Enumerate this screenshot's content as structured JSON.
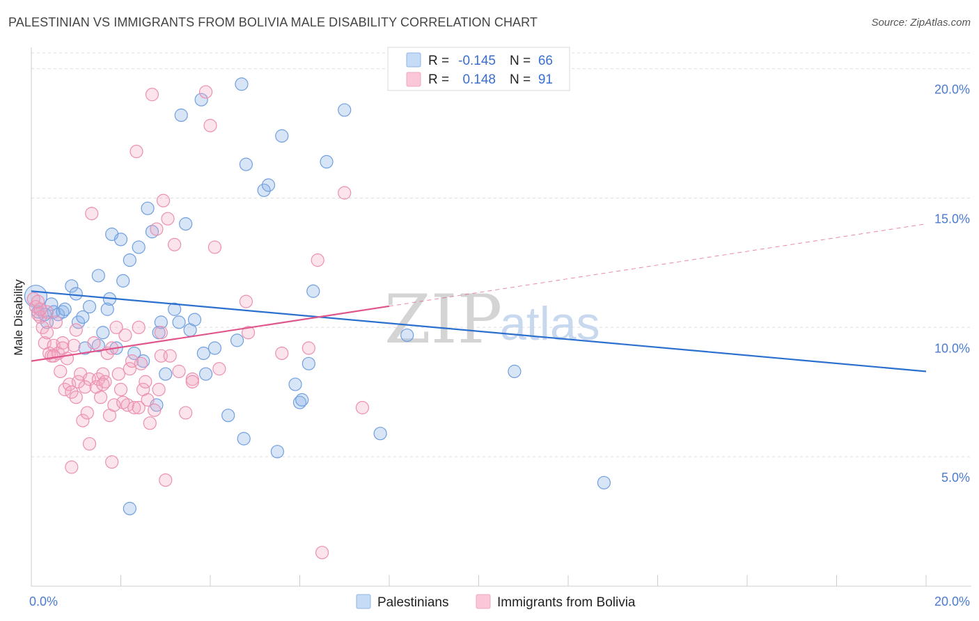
{
  "title": "PALESTINIAN VS IMMIGRANTS FROM BOLIVIA MALE DISABILITY CORRELATION CHART",
  "source": "Source: ZipAtlas.com",
  "watermark": {
    "zip": "ZIP",
    "atlas": "atlas"
  },
  "colors": {
    "blue": "#8fb5e8",
    "blue_line": "#2b6fcf",
    "pink": "#f2a7c0",
    "pink_line": "#e0558a",
    "grid": "#dddddd",
    "tick": "#4a7bd0"
  },
  "legend": {
    "rows": [
      {
        "r_label": "R =",
        "r_value": "-0.145",
        "n_label": "N =",
        "n_value": "66"
      },
      {
        "r_label": "R =",
        "r_value": "0.148",
        "n_label": "N =",
        "n_value": "91"
      }
    ]
  },
  "bottom_legend": [
    "Palestinians",
    "Immigrants from Bolivia"
  ],
  "chart_data": {
    "type": "scatter",
    "title": "PALESTINIAN VS IMMIGRANTS FROM BOLIVIA MALE DISABILITY CORRELATION CHART",
    "xlabel": "",
    "ylabel": "Male Disability",
    "x_ticks": [
      "0.0%",
      "20.0%"
    ],
    "y_ticks": [
      "5.0%",
      "10.0%",
      "15.0%",
      "20.0%"
    ],
    "xlim": [
      0,
      20
    ],
    "ylim": [
      0,
      20.5
    ],
    "series": [
      {
        "name": "Palestinians",
        "r": -0.145,
        "n": 66,
        "trend": {
          "x0": 0,
          "y0": 11.4,
          "x1": 20,
          "y1": 8.3,
          "dash_from": null
        },
        "points": [
          [
            0.1,
            11.2
          ],
          [
            0.15,
            10.6
          ],
          [
            0.2,
            10.7
          ],
          [
            0.3,
            10.5
          ],
          [
            0.35,
            10.2
          ],
          [
            0.45,
            10.9
          ],
          [
            0.5,
            10.6
          ],
          [
            0.6,
            10.5
          ],
          [
            0.7,
            10.6
          ],
          [
            0.75,
            10.7
          ],
          [
            0.9,
            11.6
          ],
          [
            1.0,
            11.3
          ],
          [
            1.05,
            10.2
          ],
          [
            1.15,
            10.4
          ],
          [
            1.3,
            10.8
          ],
          [
            1.2,
            9.2
          ],
          [
            1.5,
            9.3
          ],
          [
            1.5,
            12.0
          ],
          [
            1.6,
            9.8
          ],
          [
            1.7,
            10.7
          ],
          [
            1.75,
            11.1
          ],
          [
            1.8,
            13.6
          ],
          [
            1.9,
            9.2
          ],
          [
            2.0,
            13.4
          ],
          [
            2.05,
            11.8
          ],
          [
            2.2,
            12.6
          ],
          [
            2.3,
            9.0
          ],
          [
            2.4,
            13.1
          ],
          [
            2.5,
            8.7
          ],
          [
            2.6,
            14.6
          ],
          [
            2.7,
            13.7
          ],
          [
            2.8,
            7.0
          ],
          [
            2.85,
            9.8
          ],
          [
            2.9,
            10.2
          ],
          [
            3.0,
            8.2
          ],
          [
            3.2,
            10.7
          ],
          [
            3.3,
            10.2
          ],
          [
            3.35,
            18.2
          ],
          [
            3.45,
            14.0
          ],
          [
            3.55,
            9.9
          ],
          [
            3.65,
            10.3
          ],
          [
            3.8,
            18.8
          ],
          [
            3.85,
            9.0
          ],
          [
            3.9,
            8.2
          ],
          [
            4.1,
            9.2
          ],
          [
            4.4,
            6.6
          ],
          [
            4.6,
            9.5
          ],
          [
            4.75,
            5.7
          ],
          [
            4.7,
            19.4
          ],
          [
            4.8,
            16.3
          ],
          [
            5.2,
            15.3
          ],
          [
            5.3,
            15.5
          ],
          [
            5.5,
            5.2
          ],
          [
            5.6,
            17.4
          ],
          [
            5.9,
            7.8
          ],
          [
            6.0,
            7.1
          ],
          [
            6.05,
            7.2
          ],
          [
            6.2,
            8.6
          ],
          [
            6.3,
            11.4
          ],
          [
            6.6,
            16.4
          ],
          [
            7.0,
            18.4
          ],
          [
            7.8,
            5.9
          ],
          [
            8.4,
            9.7
          ],
          [
            10.8,
            8.3
          ],
          [
            12.8,
            4.0
          ],
          [
            2.2,
            3.0
          ]
        ]
      },
      {
        "name": "Immigrants from Bolivia",
        "r": 0.148,
        "n": 91,
        "trend": {
          "x0": 0,
          "y0": 8.7,
          "x1": 20,
          "y1": 14.0,
          "dash_from": 8.0
        },
        "points": [
          [
            0.05,
            11.1
          ],
          [
            0.1,
            10.8
          ],
          [
            0.15,
            10.5
          ],
          [
            0.2,
            10.4
          ],
          [
            0.25,
            10.0
          ],
          [
            0.3,
            9.4
          ],
          [
            0.35,
            9.8
          ],
          [
            0.4,
            9.0
          ],
          [
            0.45,
            8.9
          ],
          [
            0.5,
            9.3
          ],
          [
            0.55,
            10.2
          ],
          [
            0.6,
            9.0
          ],
          [
            0.65,
            8.3
          ],
          [
            0.7,
            9.4
          ],
          [
            0.75,
            7.6
          ],
          [
            0.8,
            8.8
          ],
          [
            0.85,
            7.8
          ],
          [
            0.9,
            7.5
          ],
          [
            0.95,
            9.3
          ],
          [
            1.0,
            9.9
          ],
          [
            1.05,
            7.9
          ],
          [
            1.1,
            8.2
          ],
          [
            1.15,
            6.4
          ],
          [
            1.2,
            7.7
          ],
          [
            1.25,
            6.7
          ],
          [
            1.3,
            8.0
          ],
          [
            1.35,
            14.4
          ],
          [
            1.4,
            9.4
          ],
          [
            1.45,
            7.7
          ],
          [
            1.5,
            8.0
          ],
          [
            1.55,
            7.3
          ],
          [
            1.6,
            8.2
          ],
          [
            1.65,
            7.9
          ],
          [
            1.7,
            9.0
          ],
          [
            1.75,
            6.6
          ],
          [
            1.8,
            4.8
          ],
          [
            1.85,
            7.0
          ],
          [
            1.9,
            10.0
          ],
          [
            1.95,
            8.2
          ],
          [
            2.0,
            7.6
          ],
          [
            2.05,
            7.1
          ],
          [
            2.1,
            9.7
          ],
          [
            2.15,
            7.0
          ],
          [
            2.2,
            8.4
          ],
          [
            2.25,
            8.7
          ],
          [
            2.3,
            6.9
          ],
          [
            2.35,
            16.8
          ],
          [
            2.4,
            10.0
          ],
          [
            2.45,
            8.6
          ],
          [
            2.5,
            7.6
          ],
          [
            2.55,
            7.9
          ],
          [
            2.6,
            7.2
          ],
          [
            2.65,
            6.3
          ],
          [
            2.7,
            19.0
          ],
          [
            2.75,
            6.8
          ],
          [
            2.8,
            13.8
          ],
          [
            2.85,
            7.6
          ],
          [
            2.9,
            8.9
          ],
          [
            2.95,
            14.9
          ],
          [
            3.0,
            4.1
          ],
          [
            3.05,
            14.2
          ],
          [
            3.1,
            8.9
          ],
          [
            3.3,
            8.3
          ],
          [
            3.45,
            6.7
          ],
          [
            3.6,
            8.0
          ],
          [
            3.9,
            19.1
          ],
          [
            4.0,
            17.8
          ],
          [
            4.1,
            13.1
          ],
          [
            4.2,
            8.4
          ],
          [
            4.8,
            11.0
          ],
          [
            4.85,
            9.8
          ],
          [
            5.6,
            9.0
          ],
          [
            6.2,
            9.2
          ],
          [
            6.4,
            12.6
          ],
          [
            6.5,
            1.3
          ],
          [
            7.0,
            15.2
          ],
          [
            7.4,
            6.9
          ],
          [
            0.35,
            10.6
          ],
          [
            0.7,
            9.2
          ],
          [
            1.3,
            5.5
          ],
          [
            0.9,
            4.6
          ],
          [
            1.6,
            7.8
          ],
          [
            2.4,
            6.9
          ],
          [
            3.2,
            13.2
          ],
          [
            0.5,
            8.9
          ],
          [
            1.0,
            7.3
          ],
          [
            1.8,
            9.2
          ],
          [
            0.2,
            10.7
          ],
          [
            0.15,
            11.0
          ],
          [
            2.9,
            9.8
          ],
          [
            3.6,
            7.9
          ]
        ]
      }
    ]
  }
}
